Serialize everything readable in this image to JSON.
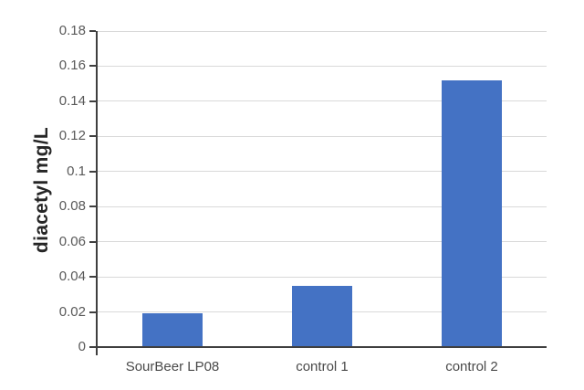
{
  "chart_data": {
    "type": "bar",
    "title": "",
    "categories": [
      "SourBeer LP08",
      "control 1",
      "control 2"
    ],
    "values": [
      0.019,
      0.035,
      0.152
    ],
    "xlabel": "",
    "ylabel": "diacetyl mg/L",
    "ylim": [
      0,
      0.18
    ],
    "ytick_labels": [
      "0",
      "0.02",
      "0.04",
      "0.06",
      "0.08",
      "0.1",
      "0.12",
      "0.14",
      "0.16",
      "0.18"
    ],
    "grid": true,
    "legend_position": "none",
    "bar_color": "#4472C4",
    "gridline_color": "#D9D9D9",
    "axis_color": "#3F3F3F",
    "tick_label_color": "#595959",
    "category_label_color": "#4A4A4A",
    "background_color": "#FFFFFF"
  }
}
